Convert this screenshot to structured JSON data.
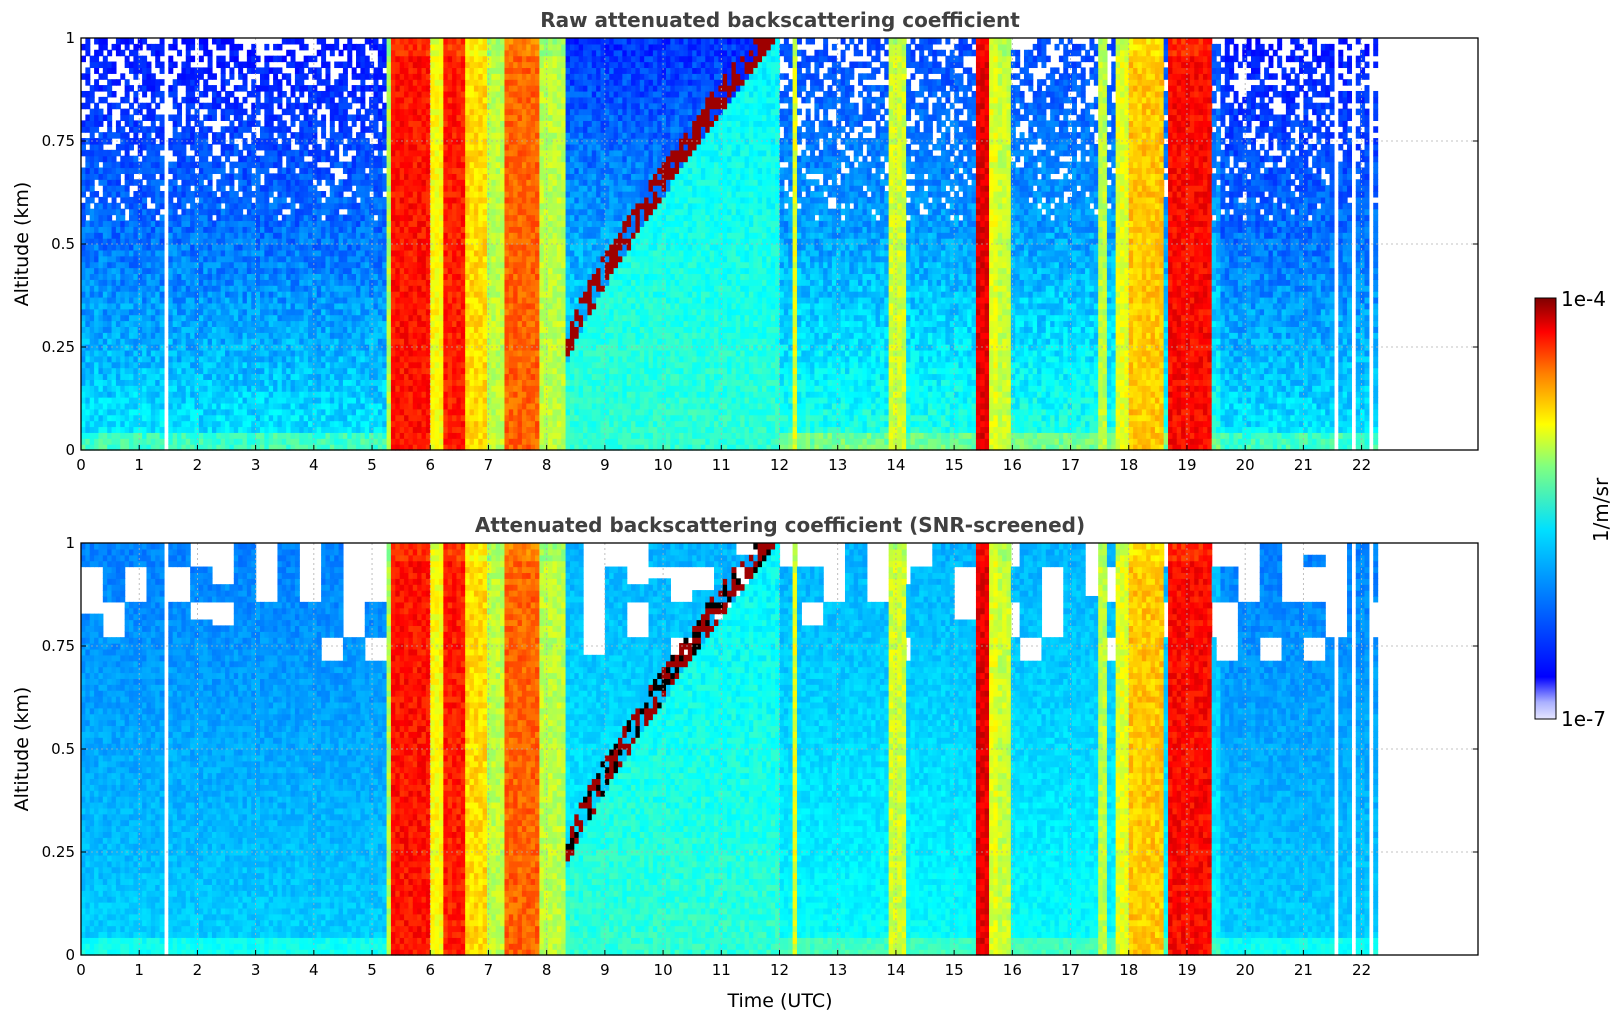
{
  "chart_data": [
    {
      "type": "heatmap",
      "title": "Raw attenuated backscattering coefficient",
      "xlabel": "",
      "ylabel": "Altitude (km)",
      "xlim": [
        0,
        24
      ],
      "ylim": [
        0,
        1
      ],
      "x_ticks": [
        "0",
        "1",
        "2",
        "3",
        "4",
        "5",
        "6",
        "7",
        "8",
        "9",
        "10",
        "11",
        "12",
        "13",
        "14",
        "15",
        "16",
        "17",
        "18",
        "19",
        "20",
        "21",
        "22"
      ],
      "y_ticks": [
        "0",
        "0.25",
        "0.5",
        "0.75",
        "1"
      ],
      "grid": true,
      "data_end_time": 22.3,
      "gaps": [
        [
          1.43,
          1.53
        ],
        [
          21.5,
          21.62
        ],
        [
          21.82,
          21.92
        ],
        [
          22.1,
          22.2
        ]
      ],
      "bands": [
        {
          "start": 5.25,
          "end": 5.35,
          "level": 0.55
        },
        {
          "start": 5.35,
          "end": 6.0,
          "level": 0.86
        },
        {
          "start": 6.0,
          "end": 6.2,
          "level": 0.62
        },
        {
          "start": 6.2,
          "end": 6.6,
          "level": 0.85
        },
        {
          "start": 6.6,
          "end": 6.95,
          "level": 0.66
        },
        {
          "start": 7.0,
          "end": 7.3,
          "level": 0.56
        },
        {
          "start": 7.3,
          "end": 7.9,
          "level": 0.78
        },
        {
          "start": 7.9,
          "end": 8.3,
          "level": 0.56
        },
        {
          "start": 12.2,
          "end": 12.3,
          "level": 0.6
        },
        {
          "start": 13.85,
          "end": 14.15,
          "level": 0.58
        },
        {
          "start": 15.4,
          "end": 15.6,
          "level": 0.9
        },
        {
          "start": 15.6,
          "end": 15.75,
          "level": 0.6
        },
        {
          "start": 15.75,
          "end": 16.0,
          "level": 0.57
        },
        {
          "start": 17.45,
          "end": 17.6,
          "level": 0.56
        },
        {
          "start": 17.75,
          "end": 18.0,
          "level": 0.6
        },
        {
          "start": 18.0,
          "end": 18.6,
          "level": 0.68
        },
        {
          "start": 18.65,
          "end": 19.45,
          "level": 0.87
        }
      ],
      "cloud_layer": {
        "start": 8.2,
        "end": 12.0,
        "base_start": 0.15,
        "base_end": 1.0,
        "level": 0.97
      }
    },
    {
      "type": "heatmap",
      "title": "Attenuated backscattering coefficient (SNR-screened)",
      "xlabel": "Time (UTC)",
      "ylabel": "Altitude (km)",
      "xlim": [
        0,
        24
      ],
      "ylim": [
        0,
        1
      ],
      "x_ticks": [
        "0",
        "1",
        "2",
        "3",
        "4",
        "5",
        "6",
        "7",
        "8",
        "9",
        "10",
        "11",
        "12",
        "13",
        "14",
        "15",
        "16",
        "17",
        "18",
        "19",
        "20",
        "21",
        "22"
      ],
      "y_ticks": [
        "0",
        "0.25",
        "0.5",
        "0.75",
        "1"
      ],
      "grid": true,
      "screened": true
    }
  ],
  "colorbar": {
    "label": "1/m/sr",
    "max_label": "1e-4",
    "min_label": "1e-7",
    "colormap": "jet"
  }
}
